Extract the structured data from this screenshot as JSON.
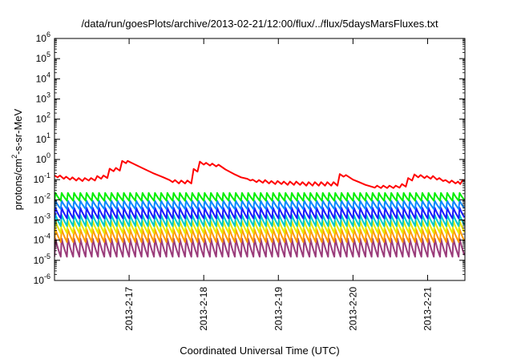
{
  "chart_data": {
    "type": "line",
    "title": "/data/run/goesPlots/archive/2013-02-21/12:00/flux/../flux/5daysMarsFluxes.txt",
    "xlabel": "Coordinated Universal Time (UTC)",
    "ylabel": {
      "prefix": "protons/cm",
      "superscript": "2",
      "suffix": "-s-sr-MeV"
    },
    "y_scale": "log",
    "ylim": [
      1e-06,
      1000000.0
    ],
    "y_ticks": [
      {
        "base": "10",
        "exp": "-6"
      },
      {
        "base": "10",
        "exp": "-5"
      },
      {
        "base": "10",
        "exp": "-4"
      },
      {
        "base": "10",
        "exp": "-3"
      },
      {
        "base": "10",
        "exp": "-2"
      },
      {
        "base": "10",
        "exp": "-1"
      },
      {
        "base": "10",
        "exp": "0"
      },
      {
        "base": "10",
        "exp": "1"
      },
      {
        "base": "10",
        "exp": "2"
      },
      {
        "base": "10",
        "exp": "3"
      },
      {
        "base": "10",
        "exp": "4"
      },
      {
        "base": "10",
        "exp": "5"
      },
      {
        "base": "10",
        "exp": "6"
      }
    ],
    "xlim": [
      "2013-02-16T00:00",
      "2013-02-21T12:00"
    ],
    "x_ticks": [
      "2013-2-17",
      "2013-2-18",
      "2013-2-19",
      "2013-2-20",
      "2013-2-21"
    ],
    "grid": false,
    "series": [
      {
        "color": "#ff0000",
        "points": [
          [
            "2013-02-16T00:00",
            0.16
          ],
          [
            "2013-02-16T01:00",
            0.13
          ],
          [
            "2013-02-16T01:45",
            0.16
          ],
          [
            "2013-02-16T03:00",
            0.11
          ],
          [
            "2013-02-16T03:45",
            0.14
          ],
          [
            "2013-02-16T05:00",
            0.1
          ],
          [
            "2013-02-16T05:45",
            0.13
          ],
          [
            "2013-02-16T07:00",
            0.09
          ],
          [
            "2013-02-16T07:45",
            0.12
          ],
          [
            "2013-02-16T09:00",
            0.085
          ],
          [
            "2013-02-16T09:45",
            0.12
          ],
          [
            "2013-02-16T11:00",
            0.09
          ],
          [
            "2013-02-16T11:45",
            0.12
          ],
          [
            "2013-02-16T13:00",
            0.09
          ],
          [
            "2013-02-16T13:45",
            0.15
          ],
          [
            "2013-02-16T15:00",
            0.11
          ],
          [
            "2013-02-16T15:45",
            0.16
          ],
          [
            "2013-02-16T17:00",
            0.12
          ],
          [
            "2013-02-16T17:45",
            0.35
          ],
          [
            "2013-02-16T19:00",
            0.26
          ],
          [
            "2013-02-16T19:45",
            0.38
          ],
          [
            "2013-02-16T21:00",
            0.28
          ],
          [
            "2013-02-16T21:45",
            0.85
          ],
          [
            "2013-02-16T23:00",
            0.65
          ],
          [
            "2013-02-16T23:30",
            0.85
          ],
          [
            "2013-02-17T02:00",
            0.55
          ],
          [
            "2013-02-17T05:00",
            0.33
          ],
          [
            "2013-02-17T08:00",
            0.2
          ],
          [
            "2013-02-17T11:00",
            0.13
          ],
          [
            "2013-02-17T13:00",
            0.095
          ],
          [
            "2013-02-17T14:00",
            0.075
          ],
          [
            "2013-02-17T14:45",
            0.095
          ],
          [
            "2013-02-17T16:00",
            0.065
          ],
          [
            "2013-02-17T16:45",
            0.09
          ],
          [
            "2013-02-17T18:00",
            0.065
          ],
          [
            "2013-02-17T18:45",
            0.09
          ],
          [
            "2013-02-17T20:00",
            0.065
          ],
          [
            "2013-02-17T20:45",
            0.34
          ],
          [
            "2013-02-17T22:00",
            0.25
          ],
          [
            "2013-02-17T22:45",
            0.78
          ],
          [
            "2013-02-18T00:00",
            0.55
          ],
          [
            "2013-02-18T00:45",
            0.68
          ],
          [
            "2013-02-18T02:00",
            0.5
          ],
          [
            "2013-02-18T02:45",
            0.62
          ],
          [
            "2013-02-18T04:00",
            0.45
          ],
          [
            "2013-02-18T04:45",
            0.55
          ],
          [
            "2013-02-18T07:00",
            0.32
          ],
          [
            "2013-02-18T10:00",
            0.18
          ],
          [
            "2013-02-18T12:00",
            0.13
          ],
          [
            "2013-02-18T14:00",
            0.11
          ],
          [
            "2013-02-18T15:00",
            0.09
          ],
          [
            "2013-02-18T15:45",
            0.1
          ],
          [
            "2013-02-18T17:00",
            0.075
          ],
          [
            "2013-02-18T17:45",
            0.095
          ],
          [
            "2013-02-18T19:00",
            0.07
          ],
          [
            "2013-02-18T19:45",
            0.095
          ],
          [
            "2013-02-18T21:00",
            0.065
          ],
          [
            "2013-02-18T21:45",
            0.085
          ],
          [
            "2013-02-18T23:00",
            0.06
          ],
          [
            "2013-02-18T23:45",
            0.085
          ],
          [
            "2013-02-19T01:00",
            0.06
          ],
          [
            "2013-02-19T01:45",
            0.08
          ],
          [
            "2013-02-19T03:00",
            0.055
          ],
          [
            "2013-02-19T03:45",
            0.08
          ],
          [
            "2013-02-19T05:00",
            0.055
          ],
          [
            "2013-02-19T05:45",
            0.08
          ],
          [
            "2013-02-19T07:00",
            0.055
          ],
          [
            "2013-02-19T07:45",
            0.075
          ],
          [
            "2013-02-19T09:00",
            0.05
          ],
          [
            "2013-02-19T09:45",
            0.075
          ],
          [
            "2013-02-19T11:00",
            0.05
          ],
          [
            "2013-02-19T11:45",
            0.075
          ],
          [
            "2013-02-19T13:00",
            0.05
          ],
          [
            "2013-02-19T13:45",
            0.075
          ],
          [
            "2013-02-19T15:00",
            0.05
          ],
          [
            "2013-02-19T15:45",
            0.075
          ],
          [
            "2013-02-19T17:00",
            0.05
          ],
          [
            "2013-02-19T17:45",
            0.075
          ],
          [
            "2013-02-19T19:00",
            0.05
          ],
          [
            "2013-02-19T19:45",
            0.19
          ],
          [
            "2013-02-19T21:00",
            0.14
          ],
          [
            "2013-02-19T21:45",
            0.17
          ],
          [
            "2013-02-20T00:00",
            0.1
          ],
          [
            "2013-02-20T02:00",
            0.075
          ],
          [
            "2013-02-20T04:00",
            0.055
          ],
          [
            "2013-02-20T06:00",
            0.045
          ],
          [
            "2013-02-20T07:00",
            0.04
          ],
          [
            "2013-02-20T07:45",
            0.05
          ],
          [
            "2013-02-20T09:00",
            0.038
          ],
          [
            "2013-02-20T09:45",
            0.05
          ],
          [
            "2013-02-20T11:00",
            0.038
          ],
          [
            "2013-02-20T11:45",
            0.05
          ],
          [
            "2013-02-20T13:00",
            0.038
          ],
          [
            "2013-02-20T13:45",
            0.05
          ],
          [
            "2013-02-20T15:00",
            0.04
          ],
          [
            "2013-02-20T15:45",
            0.06
          ],
          [
            "2013-02-20T17:00",
            0.045
          ],
          [
            "2013-02-20T17:45",
            0.12
          ],
          [
            "2013-02-20T19:00",
            0.09
          ],
          [
            "2013-02-20T19:45",
            0.18
          ],
          [
            "2013-02-20T21:00",
            0.13
          ],
          [
            "2013-02-20T21:45",
            0.17
          ],
          [
            "2013-02-20T23:00",
            0.12
          ],
          [
            "2013-02-20T23:45",
            0.15
          ],
          [
            "2013-02-21T01:00",
            0.11
          ],
          [
            "2013-02-21T01:45",
            0.15
          ],
          [
            "2013-02-21T03:00",
            0.1
          ],
          [
            "2013-02-21T03:45",
            0.12
          ],
          [
            "2013-02-21T05:00",
            0.085
          ],
          [
            "2013-02-21T05:45",
            0.095
          ],
          [
            "2013-02-21T07:00",
            0.07
          ],
          [
            "2013-02-21T07:45",
            0.09
          ],
          [
            "2013-02-21T09:00",
            0.065
          ],
          [
            "2013-02-21T09:45",
            0.08
          ],
          [
            "2013-02-21T10:30",
            0.06
          ],
          [
            "2013-02-21T11:15",
            0.095
          ],
          [
            "2013-02-21T12:00",
            0.09
          ]
        ]
      },
      {
        "color": "#00ee00",
        "periodic": {
          "start": "2013-02-16T00:00",
          "period_hours": 2,
          "peak": 0.022,
          "trough": 0.009,
          "count": 66
        }
      },
      {
        "color": "#0a88ff",
        "periodic": {
          "start": "2013-02-16T00:00",
          "period_hours": 2,
          "peak": 0.009,
          "trough": 0.0035,
          "count": 66
        }
      },
      {
        "color": "#1a1aff",
        "periodic": {
          "start": "2013-02-16T00:00",
          "period_hours": 2,
          "peak": 0.004,
          "trough": 0.0012,
          "count": 66
        }
      },
      {
        "color": "#00c8c8",
        "periodic": {
          "start": "2013-02-16T00:00",
          "period_hours": 2,
          "peak": 0.0018,
          "trough": 0.0005,
          "count": 66
        }
      },
      {
        "color": "#e8e800",
        "periodic": {
          "start": "2013-02-16T00:00",
          "period_hours": 2,
          "peak": 0.0009,
          "trough": 0.00022,
          "count": 66
        }
      },
      {
        "color": "#ff9900",
        "periodic": {
          "start": "2013-02-16T00:00",
          "period_hours": 2,
          "peak": 0.00035,
          "trough": 8e-05,
          "count": 66
        }
      },
      {
        "color": "#9a3b7a",
        "periodic": {
          "start": "2013-02-16T00:00",
          "period_hours": 2,
          "peak": 0.00012,
          "trough": 1.5e-05,
          "count": 66
        }
      }
    ]
  }
}
